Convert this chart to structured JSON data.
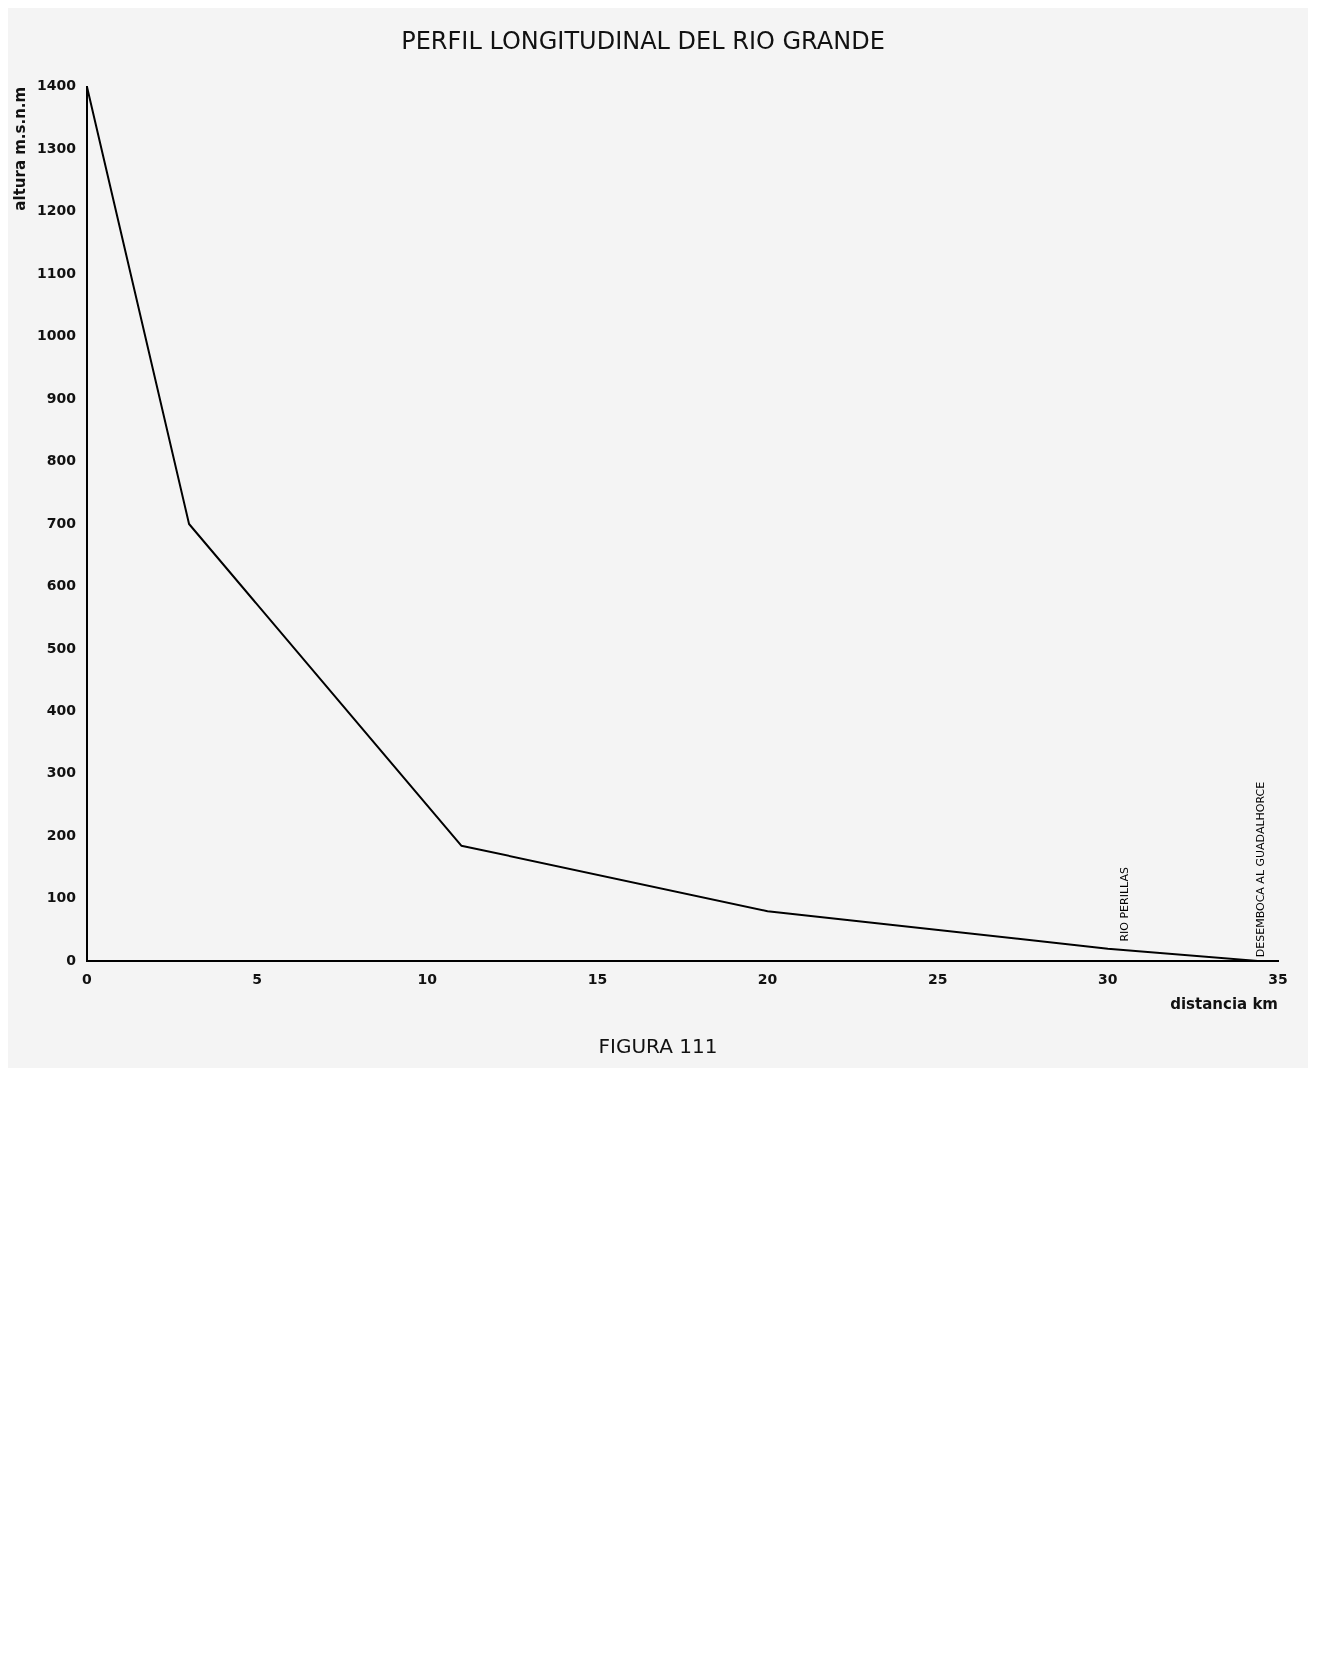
{
  "chart_data": {
    "type": "line",
    "title": "PERFIL LONGITUDINAL DEL RIO GRANDE",
    "xlabel": "distancia km",
    "ylabel": "altura m.s.n.m",
    "x": [
      0,
      3,
      11,
      20,
      30,
      34.5
    ],
    "series": [
      {
        "color": "#000000",
        "values": [
          1400,
          700,
          185,
          80,
          20,
          0
        ]
      }
    ],
    "xlim": [
      0,
      35
    ],
    "xticks": [
      0,
      5,
      10,
      15,
      20,
      25,
      30,
      35
    ],
    "ylim": [
      0,
      1400
    ],
    "yticks": [
      0,
      100,
      200,
      300,
      400,
      500,
      600,
      700,
      800,
      900,
      1000,
      1100,
      1200,
      1300,
      1400
    ],
    "grid": false,
    "legend": false,
    "marker": "none",
    "line_style": "solid",
    "annotations": [
      {
        "text": "RIO PERILLAS",
        "x": 30.5,
        "y": 25
      },
      {
        "text": "DESEMBOCA AL GUADALHORCE",
        "x": 34.5,
        "y": 0
      },
      "FIGURA 111"
    ]
  }
}
